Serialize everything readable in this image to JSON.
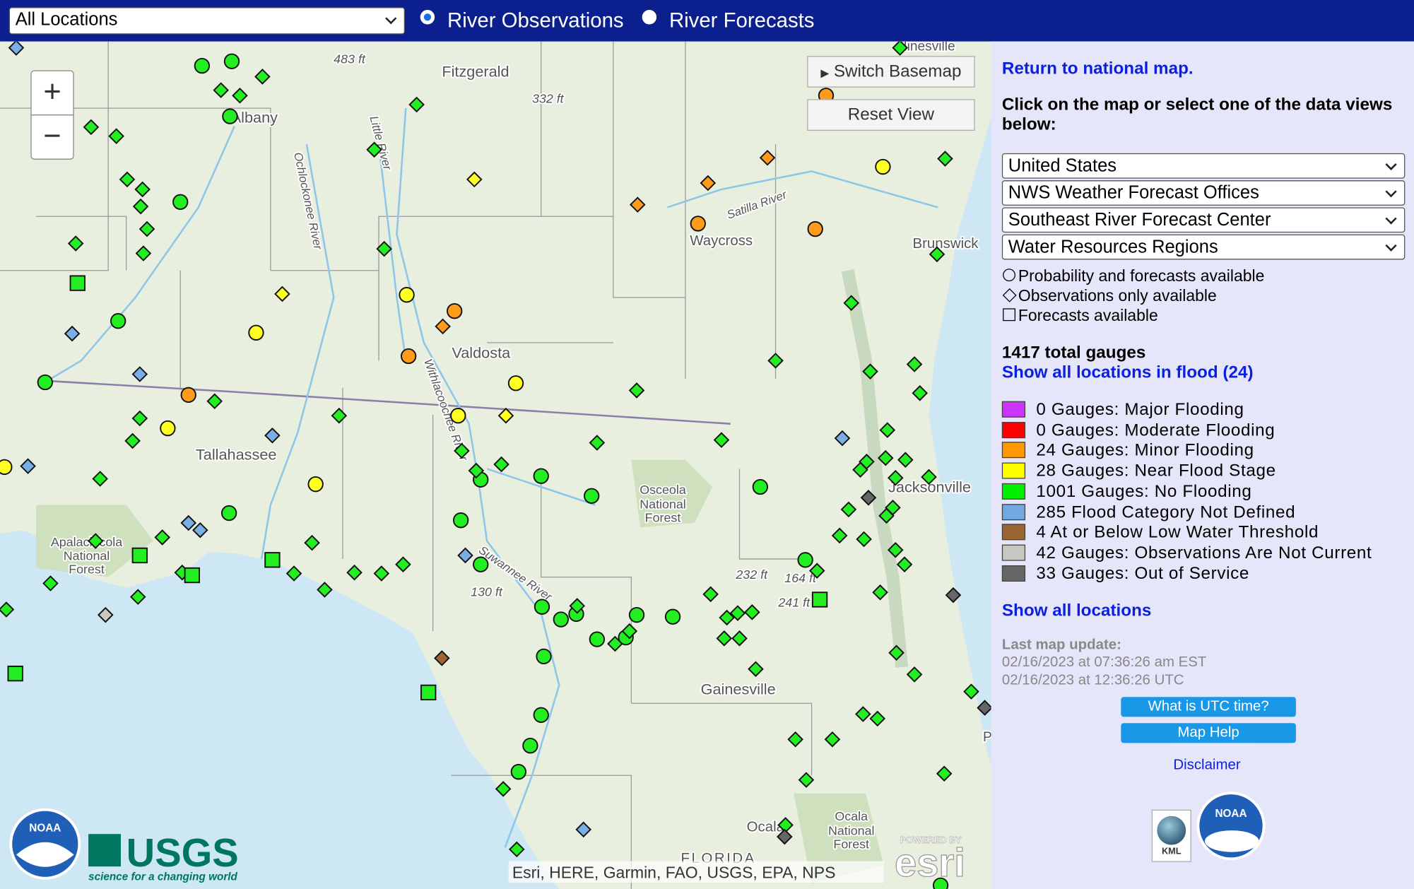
{
  "top_bar": {
    "location_select": "All Locations",
    "radio_options": [
      "River Observations",
      "River Forecasts"
    ]
  },
  "map": {
    "zoom_in": "+",
    "zoom_out": "−",
    "buttons": [
      "Switch Basemap",
      "Reset View"
    ],
    "places": [
      "Fitzgerald",
      "Albany",
      "Valdosta",
      "Tallahassee",
      "Waycross",
      "Brunswick",
      "Jacksonville",
      "Gainesville",
      "Ocala",
      "Hinesville",
      "P"
    ],
    "forests": [
      [
        "Osceola",
        "National",
        "Forest"
      ],
      [
        "Apalachicola",
        "National",
        "Forest"
      ],
      [
        "Ocala",
        "National",
        "Forest"
      ]
    ],
    "state_label": "FLORIDA",
    "elevations": [
      "483 ft",
      "332 ft",
      "130 ft",
      "232 ft",
      "164 ft",
      "241 ft"
    ],
    "rivers": [
      "Ochlockonee River",
      "Little River",
      "Satilla River",
      "Withlacoochee River",
      "Suwannee River"
    ],
    "attribution": "Esri, HERE, Garmin, FAO, USGS, EPA, NPS",
    "esri": {
      "powered_by": "POWERED BY",
      "name": "esri"
    },
    "usgs": {
      "name": "USGS",
      "tagline": "science for a changing world"
    },
    "noaa": "NOAA"
  },
  "sidebar": {
    "return_link": "Return to national map.",
    "instructions": "Click on the map or select one of the data views below:",
    "selects": [
      "United States",
      "NWS Weather Forecast Offices",
      "Southeast River Forecast Center",
      "Water Resources Regions"
    ],
    "shape_key": [
      "Probability and forecasts available",
      "Observations only available",
      "Forecasts available"
    ],
    "total_gauges": "1417 total gauges",
    "flood_link": "Show all locations in flood (24)",
    "legend": [
      {
        "label": "0 Gauges: Major Flooding",
        "color": "#cc33ff"
      },
      {
        "label": "0 Gauges: Moderate Flooding",
        "color": "#ff0000"
      },
      {
        "label": "24 Gauges: Minor Flooding",
        "color": "#ff9900"
      },
      {
        "label": "28 Gauges: Near Flood Stage",
        "color": "#ffff00"
      },
      {
        "label": "1001 Gauges: No Flooding",
        "color": "#00ee00"
      },
      {
        "label": "285 Flood Category Not Defined",
        "color": "#72a8e0"
      },
      {
        "label": "4 At or Below Low Water Threshold",
        "color": "#996633"
      },
      {
        "label": "42 Gauges: Observations Are Not Current",
        "color": "#c8c8c0"
      },
      {
        "label": "33 Gauges: Out of Service",
        "color": "#666666"
      }
    ],
    "all_locations_link": "Show all locations",
    "last_update": {
      "label": "Last map update:",
      "local": "02/16/2023 at 07:36:26 am EST",
      "utc": "02/16/2023 at 12:36:26 UTC"
    },
    "buttons": [
      "What is UTC time?",
      "Map Help"
    ],
    "disclaimer": "Disclaimer",
    "kml": "KML"
  }
}
